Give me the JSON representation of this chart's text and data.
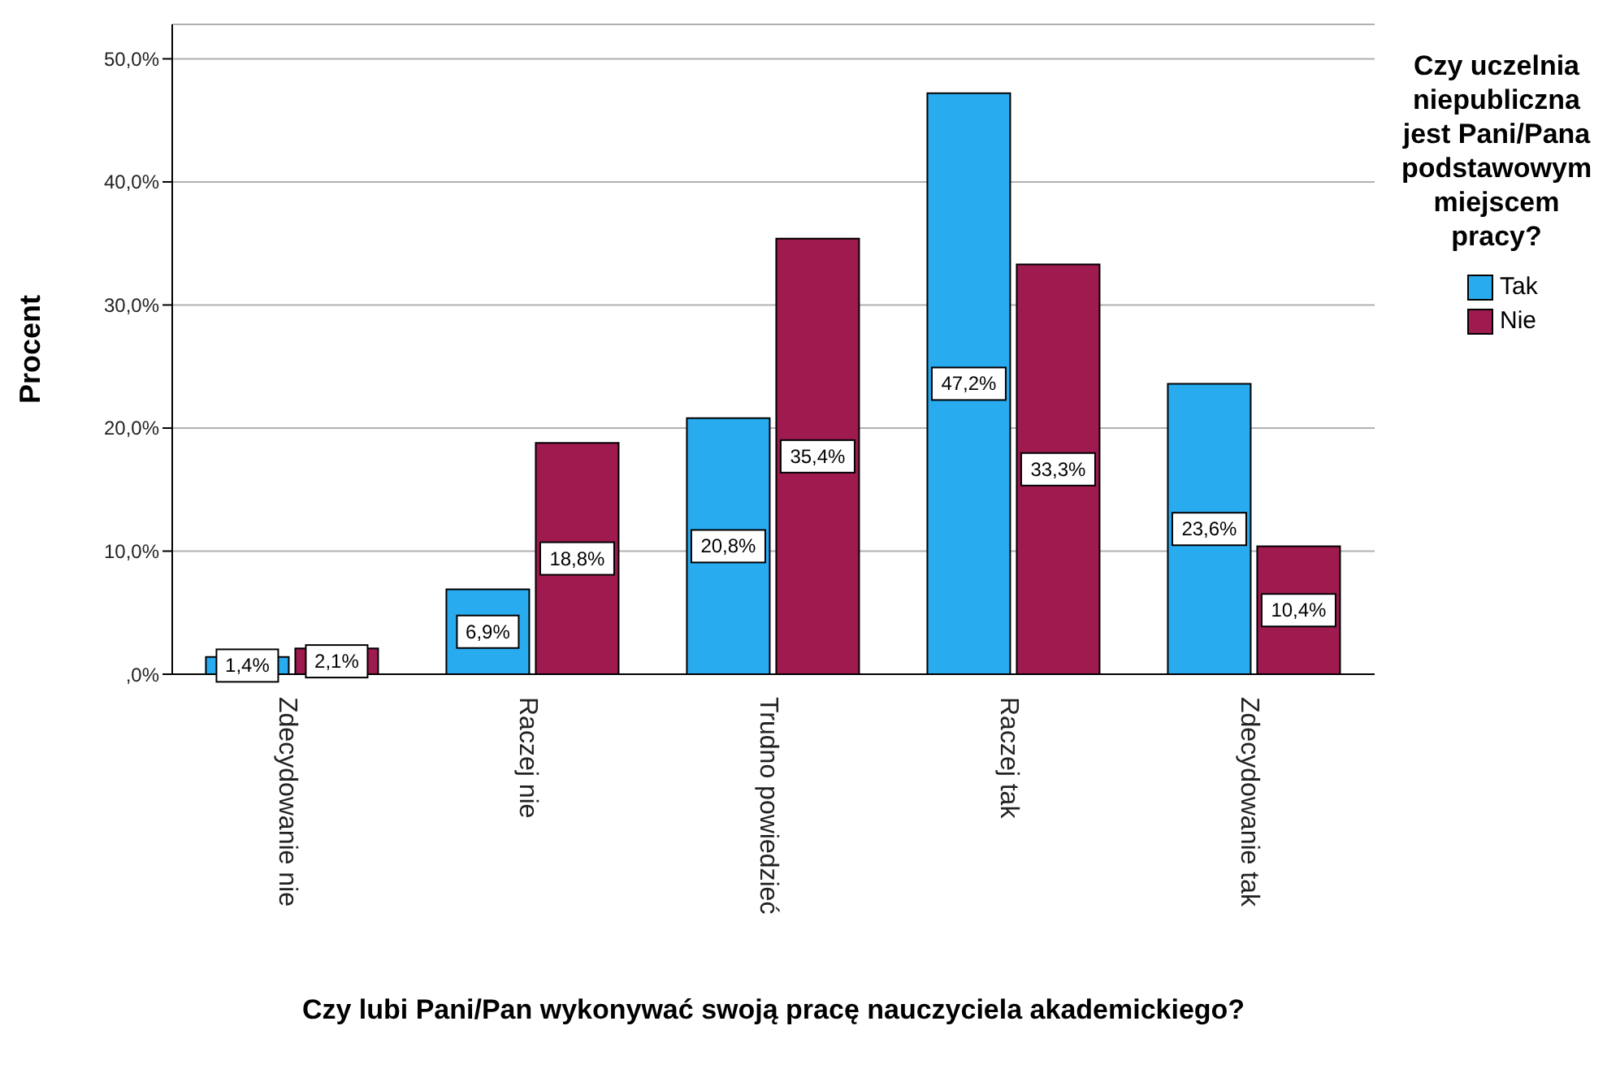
{
  "chart_data": {
    "type": "bar",
    "categories": [
      "Zdecydowanie nie",
      "Raczej nie",
      "Trudno powiedzieć",
      "Raczej tak",
      "Zdecydowanie tak"
    ],
    "series": [
      {
        "name": "Tak",
        "color": "#29abf0",
        "values": [
          1.4,
          6.9,
          20.8,
          47.2,
          23.6
        ],
        "value_labels": [
          "1,4%",
          "6,9%",
          "20,8%",
          "47,2%",
          "23,6%"
        ]
      },
      {
        "name": "Nie",
        "color": "#9e1a4f",
        "values": [
          2.1,
          18.8,
          35.4,
          33.3,
          10.4
        ],
        "value_labels": [
          "2,1%",
          "18,8%",
          "35,4%",
          "33,3%",
          "10,4%"
        ]
      }
    ],
    "xlabel": "Czy lubi Pani/Pan wykonywać swoją pracę nauczyciela akademickiego?",
    "ylabel": "Procent",
    "legend_title": "Czy uczelnia niepubliczna jest Pani/Pana podstawowym miejscem pracy?",
    "ylim": [
      0,
      52.8
    ],
    "yticks": [
      {
        "value": 0,
        "label": ",0%"
      },
      {
        "value": 10,
        "label": "10,0%"
      },
      {
        "value": 20,
        "label": "20,0%"
      },
      {
        "value": 30,
        "label": "30,0%"
      },
      {
        "value": 40,
        "label": "40,0%"
      },
      {
        "value": 50,
        "label": "50,0%"
      }
    ],
    "grid": "y",
    "legend": "right"
  }
}
